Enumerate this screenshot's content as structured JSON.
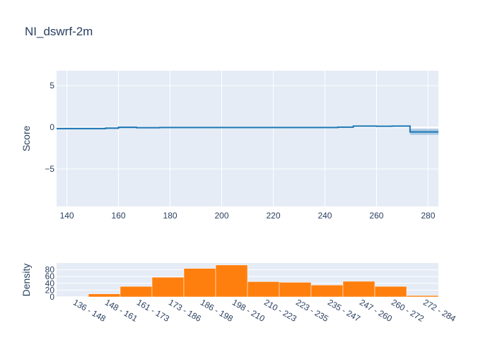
{
  "chart_data": [
    {
      "type": "line",
      "title": "NI_dswrf-2m",
      "xlabel": "",
      "ylabel": "Score",
      "xlim": [
        136,
        284
      ],
      "ylim": [
        -9.5,
        6.8
      ],
      "xticks": [
        140,
        160,
        180,
        200,
        220,
        240,
        260,
        280
      ],
      "yticks": [
        5,
        0,
        -5
      ],
      "ytick_labels": [
        "5",
        "0",
        "−5"
      ],
      "grid": true,
      "line_color": "#1f77b4",
      "band_color": "#1f77b4",
      "steps": [
        {
          "x0": 136,
          "x1": 155,
          "y": -0.15,
          "lo": -0.25,
          "hi": -0.05
        },
        {
          "x0": 155,
          "x1": 160,
          "y": -0.1,
          "lo": -0.2,
          "hi": 0.0
        },
        {
          "x0": 160,
          "x1": 167,
          "y": 0.0,
          "lo": -0.1,
          "hi": 0.1
        },
        {
          "x0": 167,
          "x1": 176,
          "y": -0.05,
          "lo": -0.12,
          "hi": 0.02
        },
        {
          "x0": 176,
          "x1": 182,
          "y": -0.02,
          "lo": -0.08,
          "hi": 0.04
        },
        {
          "x0": 182,
          "x1": 245,
          "y": -0.02,
          "lo": -0.06,
          "hi": 0.02
        },
        {
          "x0": 245,
          "x1": 251,
          "y": 0.02,
          "lo": -0.04,
          "hi": 0.08
        },
        {
          "x0": 251,
          "x1": 260,
          "y": 0.15,
          "lo": 0.08,
          "hi": 0.22
        },
        {
          "x0": 260,
          "x1": 266,
          "y": 0.12,
          "lo": 0.05,
          "hi": 0.19
        },
        {
          "x0": 266,
          "x1": 273,
          "y": 0.15,
          "lo": 0.08,
          "hi": 0.22
        },
        {
          "x0": 273,
          "x1": 284,
          "y": -0.55,
          "lo": -0.9,
          "hi": -0.2
        }
      ]
    },
    {
      "type": "bar",
      "xlabel": "",
      "ylabel": "Density",
      "ylim": [
        0,
        100
      ],
      "yticks": [
        0,
        20,
        40,
        60,
        80
      ],
      "grid": true,
      "bar_color": "#ff7f0e",
      "categories": [
        "136 - 148",
        "148 - 161",
        "161 - 173",
        "173 - 186",
        "186 - 198",
        "198 - 210",
        "210 - 223",
        "223 - 235",
        "235 - 247",
        "247 - 260",
        "260 - 272",
        "272 - 284"
      ],
      "values": [
        1,
        9,
        31,
        58,
        84,
        94,
        45,
        43,
        35,
        46,
        31,
        4
      ]
    }
  ]
}
